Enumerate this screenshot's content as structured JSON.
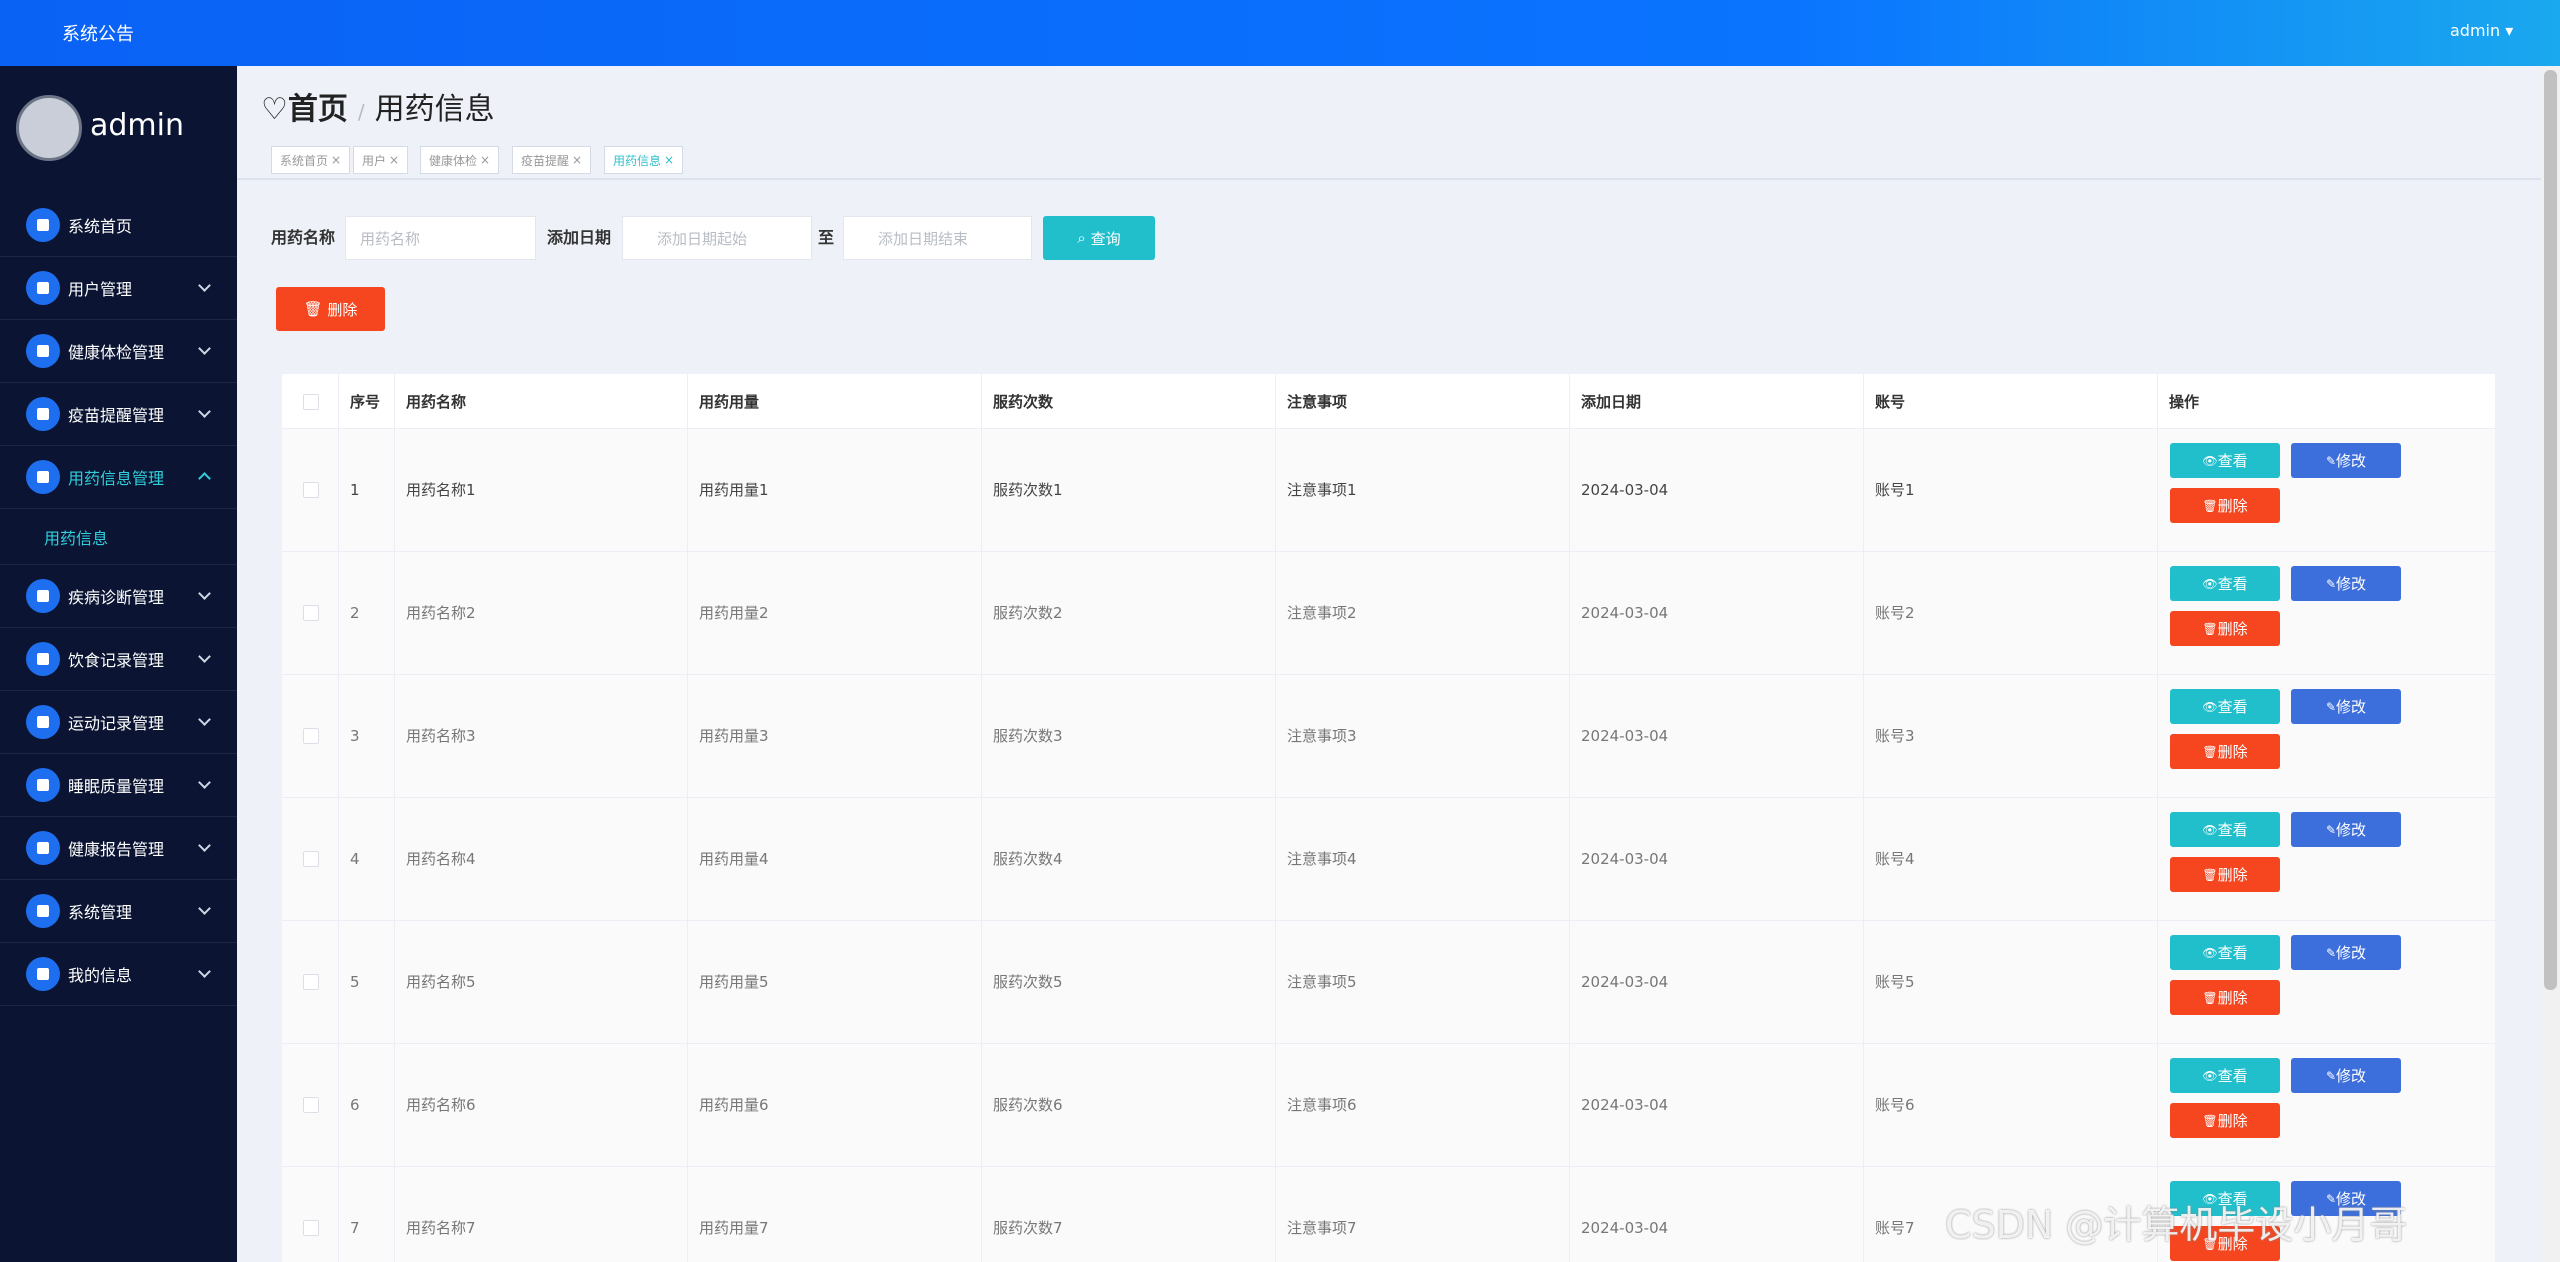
{
  "topbar": {
    "notice": "系统公告",
    "user": "admin"
  },
  "sidebar": {
    "username": "admin",
    "menu": [
      "系统首页",
      "用户管理",
      "健康体检管理",
      "疫苗提醒管理",
      "用药信息管理",
      "疾病诊断管理",
      "饮食记录管理",
      "运动记录管理",
      "睡眠质量管理",
      "健康报告管理",
      "系统管理",
      "我的信息"
    ],
    "submenu": [
      "用药信息"
    ]
  },
  "breadcrumb": {
    "home": "首页",
    "current": "用药信息"
  },
  "tabs": [
    "系统首页",
    "用户",
    "健康体检",
    "疫苗提醒",
    "用药信息"
  ],
  "search": {
    "name_label": "用药名称",
    "name_placeholder": "用药名称",
    "date_label": "添加日期",
    "start_placeholder": "添加日期起始",
    "to": "至",
    "end_placeholder": "添加日期结束",
    "query": "查询"
  },
  "batch_delete": "删除",
  "table": {
    "columns": [
      "序号",
      "用药名称",
      "用药用量",
      "服药次数",
      "注意事项",
      "添加日期",
      "账号",
      "操作"
    ],
    "rows": [
      [
        "1",
        "用药名称1",
        "用药用量1",
        "服药次数1",
        "注意事项1",
        "2024-03-04",
        "账号1"
      ],
      [
        "2",
        "用药名称2",
        "用药用量2",
        "服药次数2",
        "注意事项2",
        "2024-03-04",
        "账号2"
      ],
      [
        "3",
        "用药名称3",
        "用药用量3",
        "服药次数3",
        "注意事项3",
        "2024-03-04",
        "账号3"
      ],
      [
        "4",
        "用药名称4",
        "用药用量4",
        "服药次数4",
        "注意事项4",
        "2024-03-04",
        "账号4"
      ],
      [
        "5",
        "用药名称5",
        "用药用量5",
        "服药次数5",
        "注意事项5",
        "2024-03-04",
        "账号5"
      ],
      [
        "6",
        "用药名称6",
        "用药用量6",
        "服药次数6",
        "注意事项6",
        "2024-03-04",
        "账号6"
      ],
      [
        "7",
        "用药名称7",
        "用药用量7",
        "服药次数7",
        "注意事项7",
        "2024-03-04",
        "账号7"
      ]
    ],
    "actions": [
      "查看",
      "修改",
      "删除"
    ]
  },
  "watermark": "CSDN @计算机毕设小月哥"
}
